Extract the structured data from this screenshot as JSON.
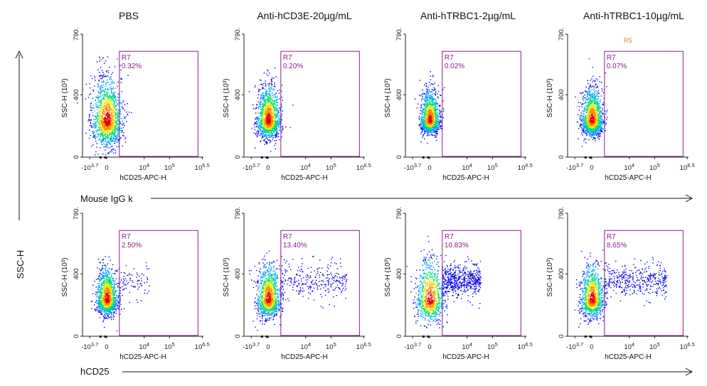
{
  "column_titles": [
    "PBS",
    "Anti-hCD3E-20µg/mL",
    "Anti-hTRBC1-2µg/mL",
    "Anti-hTRBC1-10µg/mL"
  ],
  "row_labels": [
    "Mouse IgG k",
    "hCD25"
  ],
  "side_label": "SSC-H",
  "extra_label": "R5",
  "colors": {
    "gate": "#8a1c8a",
    "density": [
      "#0000ee",
      "#00a0ff",
      "#00e070",
      "#e8e800",
      "#ff8800",
      "#e00000"
    ]
  },
  "chart_data": {
    "type": "scatter",
    "description_note": "Flow cytometry density plots: hCD25-APC-H vs SSC-H, gate R7",
    "xlabel": "hCD25-APC-H",
    "ylabel": "SSC-H (10³)",
    "x_scale": "biexponential",
    "x_tick_labels": [
      "-10^3.7",
      "0",
      "10^4",
      "10^5",
      "10^6.5"
    ],
    "y_tick_labels": [
      "0",
      "400",
      "790."
    ],
    "ylim": [
      0,
      790
    ],
    "gate_name": "R7",
    "panels": [
      {
        "row": "Mouse IgG k",
        "column": "PBS",
        "gate_percent": "0.32%"
      },
      {
        "row": "Mouse IgG k",
        "column": "Anti-hCD3E-20µg/mL",
        "gate_percent": "0.20%"
      },
      {
        "row": "Mouse IgG k",
        "column": "Anti-hTRBC1-2µg/mL",
        "gate_percent": "0.02%"
      },
      {
        "row": "Mouse IgG k",
        "column": "Anti-hTRBC1-10µg/mL",
        "gate_percent": "0.07%"
      },
      {
        "row": "hCD25",
        "column": "PBS",
        "gate_percent": "2.50%"
      },
      {
        "row": "hCD25",
        "column": "Anti-hCD3E-20µg/mL",
        "gate_percent": "13.40%"
      },
      {
        "row": "hCD25",
        "column": "Anti-hTRBC1-2µg/mL",
        "gate_percent": "10.83%"
      },
      {
        "row": "hCD25",
        "column": "Anti-hTRBC1-10µg/mL",
        "gate_percent": "8.65%"
      }
    ]
  }
}
